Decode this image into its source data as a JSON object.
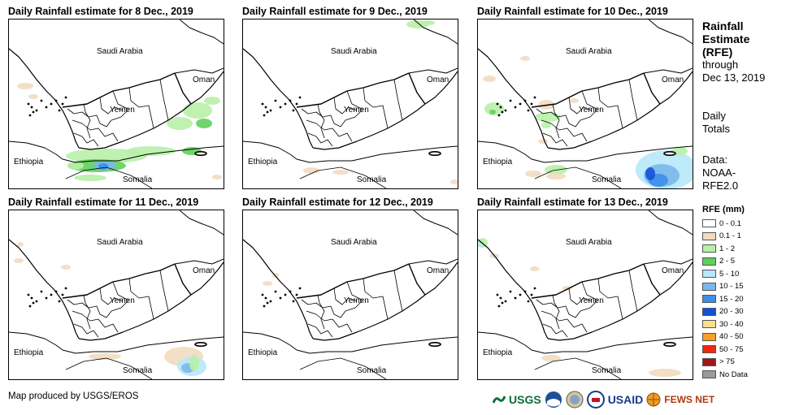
{
  "panels": [
    {
      "title": "Daily Rainfall estimate for 8 Dec., 2019"
    },
    {
      "title": "Daily Rainfall estimate for 9 Dec., 2019"
    },
    {
      "title": "Daily Rainfall estimate for 10 Dec., 2019"
    },
    {
      "title": "Daily Rainfall estimate for 11 Dec., 2019"
    },
    {
      "title": "Daily Rainfall estimate for 12 Dec., 2019"
    },
    {
      "title": "Daily Rainfall estimate for 13 Dec., 2019"
    }
  ],
  "map_labels": {
    "saudi": "Saudi Arabia",
    "oman": "Oman",
    "yemen": "Yemen",
    "ethiopia": "Ethiopia",
    "somalia": "Somalia"
  },
  "legend": {
    "title_lines": [
      "Rainfall",
      "Estimate",
      "(RFE)"
    ],
    "through": "through",
    "date": "Dec 13, 2019",
    "daily": "Daily",
    "totals": "Totals",
    "data_label": "Data:",
    "source1": "NOAA-",
    "source2": "RFE2.0",
    "units": "RFE (mm)",
    "items": [
      {
        "label": "0 - 0.1",
        "color": "#ffffff"
      },
      {
        "label": "0.1 - 1",
        "color": "#f1dcc0"
      },
      {
        "label": "1 - 2",
        "color": "#b8f0a8"
      },
      {
        "label": "2 - 5",
        "color": "#5fd05c"
      },
      {
        "label": "5 - 10",
        "color": "#b8e8f8"
      },
      {
        "label": "10 - 15",
        "color": "#7ab8ea"
      },
      {
        "label": "15 - 20",
        "color": "#3c8ee8"
      },
      {
        "label": "20 - 30",
        "color": "#1450d8"
      },
      {
        "label": "30 - 40",
        "color": "#f8e08a"
      },
      {
        "label": "40 - 50",
        "color": "#f8a020"
      },
      {
        "label": "50 - 75",
        "color": "#f02810"
      },
      {
        "label": "> 75",
        "color": "#a01818"
      },
      {
        "label": "No Data",
        "color": "#9a9a9a"
      }
    ]
  },
  "footer": "Map produced by USGS/EROS",
  "logos": {
    "usgs": "USGS",
    "usaid": "USAID",
    "fews": "FEWS NET"
  }
}
